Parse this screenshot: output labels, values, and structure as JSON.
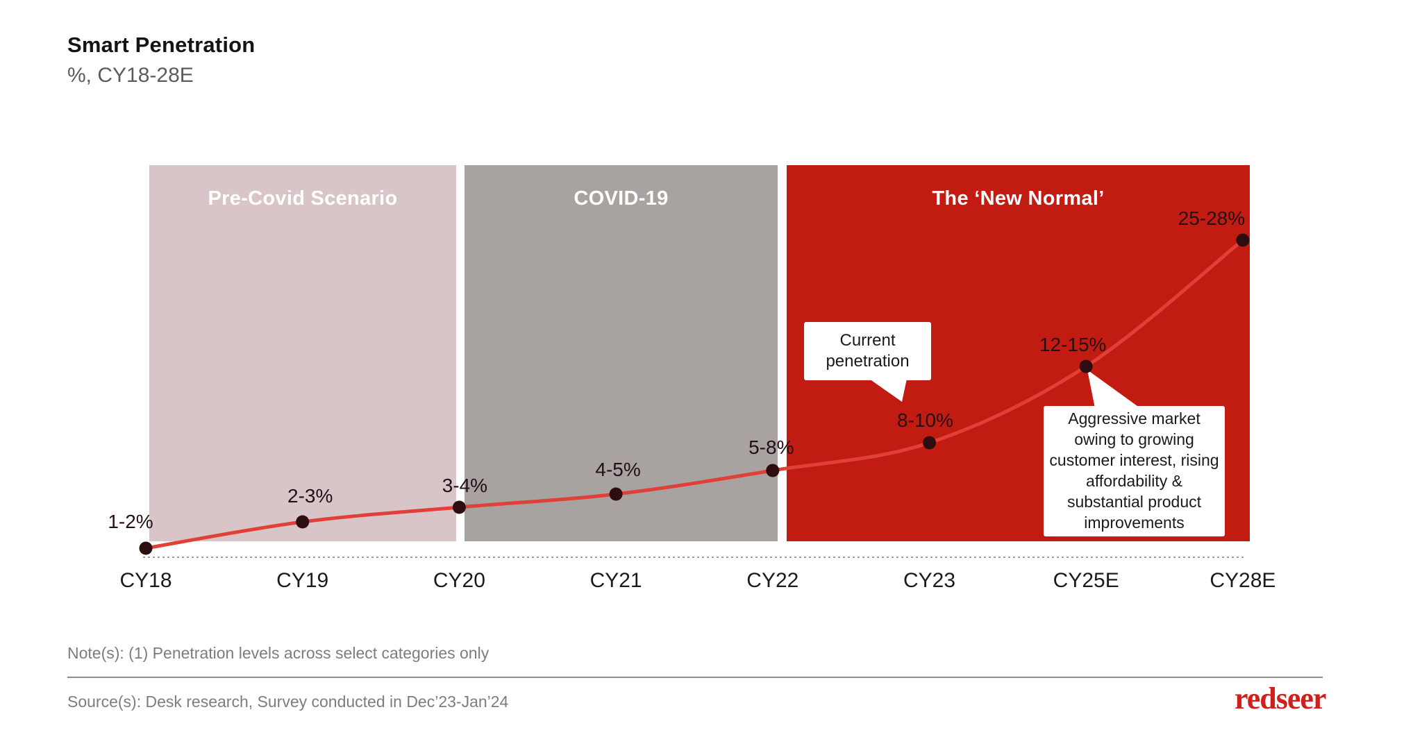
{
  "header": {
    "title": "Smart Penetration",
    "subtitle": "%, CY18-28E"
  },
  "chart_data": {
    "type": "line",
    "title": "Smart Penetration",
    "unit_label": "%, CY18-28E",
    "categories": [
      "CY18",
      "CY19",
      "CY20",
      "CY21",
      "CY22",
      "CY23",
      "CY25E",
      "CY28E"
    ],
    "series": [
      {
        "name": "Smart penetration (%)",
        "value_labels": [
          "1-2%",
          "2-3%",
          "3-4%",
          "4-5%",
          "5-8%",
          "8-10%",
          "12-15%",
          "25-28%"
        ],
        "values_low": [
          1,
          2,
          3,
          4,
          5,
          8,
          12,
          25
        ],
        "values_high": [
          2,
          3,
          4,
          5,
          8,
          10,
          15,
          28
        ]
      }
    ],
    "zones": [
      {
        "label": "Pre-Covid Scenario",
        "from": "CY18",
        "to": "CY20",
        "color": "#d9c5c8"
      },
      {
        "label": "COVID-19",
        "from": "CY20",
        "to": "CY22",
        "color": "#a8a3a0"
      },
      {
        "label": "The ‘New Normal’",
        "from": "CY22",
        "to": "CY28E",
        "color": "#c21b12"
      }
    ],
    "annotations": [
      {
        "id": "current",
        "text": "Current penetration",
        "target": "CY23"
      },
      {
        "id": "aggressive",
        "text": "Aggressive market owing to growing customer interest, rising affordability & substantial product improvements",
        "target": "CY25E"
      }
    ],
    "line_color": "#e04038",
    "point_color": "#2d0d0f",
    "axis_line_color": "#9a9a9a",
    "legend": "none",
    "grid": "off"
  },
  "footer": {
    "note": "Note(s): (1) Penetration levels across select categories only",
    "source": "Source(s): Desk research, Survey conducted in Dec’23-Jan’24",
    "logo_text": "redseer"
  }
}
